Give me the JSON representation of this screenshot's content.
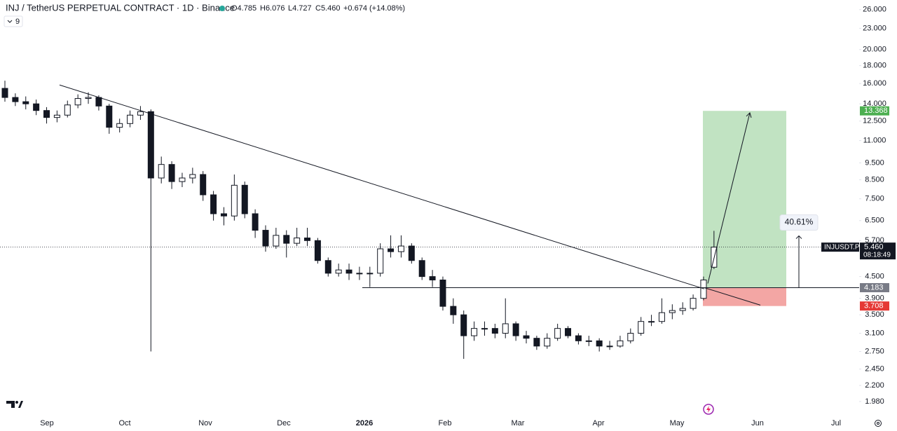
{
  "chart_data": {
    "type": "candlestick",
    "title": "INJ / TetherUS PERPETUAL CONTRACT · 1D · Binance",
    "header_stats": [
      "O4.785",
      "H6.076",
      "L4.727",
      "C5.460",
      "+0.674 (+14.08%)"
    ],
    "indicator_label": "9",
    "log_scale": true,
    "up_color": "#ffffff",
    "down_color": "#131722",
    "ylim": [
      1.83,
      27.7
    ],
    "yticks": [
      {
        "value": 26,
        "label": "26.000"
      },
      {
        "value": 23,
        "label": "23.000"
      },
      {
        "value": 20,
        "label": "20.000"
      },
      {
        "value": 18,
        "label": "18.000"
      },
      {
        "value": 16,
        "label": "16.000"
      },
      {
        "value": 14,
        "label": "14.000"
      },
      {
        "value": 12.5,
        "label": "12.500"
      },
      {
        "value": 11,
        "label": "11.000"
      },
      {
        "value": 9.5,
        "label": "9.500"
      },
      {
        "value": 8.5,
        "label": "8.500"
      },
      {
        "value": 7.5,
        "label": "7.500"
      },
      {
        "value": 6.5,
        "label": "6.500"
      },
      {
        "value": 5.7,
        "label": "5.700"
      },
      {
        "value": 4.5,
        "label": "4.500"
      },
      {
        "value": 3.9,
        "label": "3.900"
      },
      {
        "value": 3.5,
        "label": "3.500"
      },
      {
        "value": 3.1,
        "label": "3.100"
      },
      {
        "value": 2.75,
        "label": "2.750"
      },
      {
        "value": 2.45,
        "label": "2.450"
      },
      {
        "value": 2.2,
        "label": "2.200"
      },
      {
        "value": 1.98,
        "label": "1.980"
      }
    ],
    "x_labels": [
      "Sep",
      "Oct",
      "Nov",
      "Dec",
      "2026",
      "Feb",
      "Mar",
      "Apr",
      "May",
      "Jun",
      "Jul"
    ],
    "ohlc": [
      [
        15.5,
        16.3,
        14.2,
        14.6
      ],
      [
        14.6,
        15.0,
        13.8,
        14.2
      ],
      [
        14.2,
        14.7,
        13.5,
        14.0
      ],
      [
        14.0,
        14.4,
        13.0,
        13.4
      ],
      [
        13.4,
        13.7,
        12.3,
        12.8
      ],
      [
        12.8,
        13.4,
        12.4,
        13.0
      ],
      [
        13.0,
        14.3,
        12.8,
        13.9
      ],
      [
        13.9,
        14.9,
        13.6,
        14.5
      ],
      [
        14.5,
        15.1,
        14.0,
        14.6
      ],
      [
        14.6,
        14.8,
        13.4,
        13.8
      ],
      [
        13.8,
        14.0,
        11.5,
        12.0
      ],
      [
        12.0,
        12.7,
        11.6,
        12.3
      ],
      [
        12.3,
        13.4,
        12.0,
        13.0
      ],
      [
        13.0,
        13.8,
        12.6,
        13.3
      ],
      [
        13.3,
        13.5,
        2.75,
        8.6
      ],
      [
        8.6,
        9.9,
        8.3,
        9.4
      ],
      [
        9.4,
        9.6,
        8.0,
        8.4
      ],
      [
        8.4,
        8.9,
        8.1,
        8.6
      ],
      [
        8.6,
        9.2,
        8.3,
        8.8
      ],
      [
        8.8,
        9.0,
        7.4,
        7.7
      ],
      [
        7.7,
        7.9,
        6.5,
        6.8
      ],
      [
        6.8,
        7.1,
        6.3,
        6.7
      ],
      [
        6.7,
        8.8,
        6.5,
        8.2
      ],
      [
        8.2,
        8.4,
        6.6,
        6.8
      ],
      [
        6.8,
        7.0,
        5.8,
        6.1
      ],
      [
        6.1,
        6.3,
        5.3,
        5.5
      ],
      [
        5.5,
        6.2,
        5.4,
        5.9
      ],
      [
        5.9,
        6.1,
        5.1,
        5.6
      ],
      [
        5.6,
        6.2,
        5.5,
        5.8
      ],
      [
        5.8,
        6.2,
        5.5,
        5.7
      ],
      [
        5.7,
        5.8,
        4.9,
        5.0
      ],
      [
        5.0,
        5.1,
        4.5,
        4.6
      ],
      [
        4.6,
        4.9,
        4.5,
        4.7
      ],
      [
        4.7,
        4.9,
        4.4,
        4.6
      ],
      [
        4.6,
        4.8,
        4.4,
        4.6
      ],
      [
        4.6,
        4.8,
        4.2,
        4.6
      ],
      [
        4.6,
        5.6,
        4.5,
        5.4
      ],
      [
        5.4,
        5.9,
        5.1,
        5.3
      ],
      [
        5.3,
        5.9,
        5.1,
        5.5
      ],
      [
        5.5,
        5.6,
        4.9,
        5.0
      ],
      [
        5.0,
        5.1,
        4.4,
        4.5
      ],
      [
        4.5,
        4.7,
        4.2,
        4.4
      ],
      [
        4.4,
        4.5,
        3.6,
        3.7
      ],
      [
        3.7,
        3.9,
        3.3,
        3.5
      ],
      [
        3.5,
        3.6,
        2.62,
        3.05
      ],
      [
        3.05,
        3.35,
        2.95,
        3.2
      ],
      [
        3.2,
        3.35,
        3.05,
        3.2
      ],
      [
        3.2,
        3.3,
        3.0,
        3.1
      ],
      [
        3.1,
        3.9,
        3.0,
        3.3
      ],
      [
        3.3,
        3.35,
        2.95,
        3.05
      ],
      [
        3.05,
        3.15,
        2.9,
        3.0
      ],
      [
        3.0,
        3.05,
        2.78,
        2.85
      ],
      [
        2.85,
        3.1,
        2.8,
        3.0
      ],
      [
        3.0,
        3.3,
        2.95,
        3.2
      ],
      [
        3.2,
        3.25,
        3.0,
        3.05
      ],
      [
        3.05,
        3.1,
        2.88,
        2.95
      ],
      [
        2.95,
        3.05,
        2.85,
        2.95
      ],
      [
        2.95,
        3.0,
        2.75,
        2.85
      ],
      [
        2.85,
        2.95,
        2.78,
        2.85
      ],
      [
        2.85,
        3.05,
        2.82,
        2.95
      ],
      [
        2.95,
        3.2,
        2.9,
        3.1
      ],
      [
        3.1,
        3.45,
        3.05,
        3.35
      ],
      [
        3.35,
        3.5,
        3.25,
        3.35
      ],
      [
        3.35,
        3.9,
        3.3,
        3.55
      ],
      [
        3.55,
        3.75,
        3.4,
        3.6
      ],
      [
        3.6,
        3.8,
        3.5,
        3.65
      ],
      [
        3.65,
        4.0,
        3.6,
        3.9
      ],
      [
        3.9,
        4.5,
        3.85,
        4.4
      ],
      [
        4.785,
        6.076,
        4.727,
        5.46
      ]
    ],
    "trendline": {
      "from": 15.85,
      "to": 4.15
    },
    "support_level": 4.183,
    "position": {
      "target": 13.368,
      "entry": 4.183,
      "stop": 3.708,
      "target_color": "#4caf50",
      "stop_color": "#e53935"
    },
    "projection": {
      "from": 4.3,
      "to": 13.2,
      "stop_line_to": 3.73
    },
    "measure": {
      "from": 4.183,
      "to": 5.88,
      "label": "40.61%"
    },
    "price_tags": [
      {
        "value": 13.368,
        "label": "13.368",
        "color": "#4caf50"
      },
      {
        "value": 4.183,
        "label": "4.183",
        "color": "#787b86"
      },
      {
        "value": 3.708,
        "label": "3.708",
        "color": "#e53935"
      }
    ],
    "last_price": {
      "symbol": "INJUSDT.P",
      "value": 5.46,
      "label": "5.460",
      "countdown": "08:18:49"
    }
  }
}
